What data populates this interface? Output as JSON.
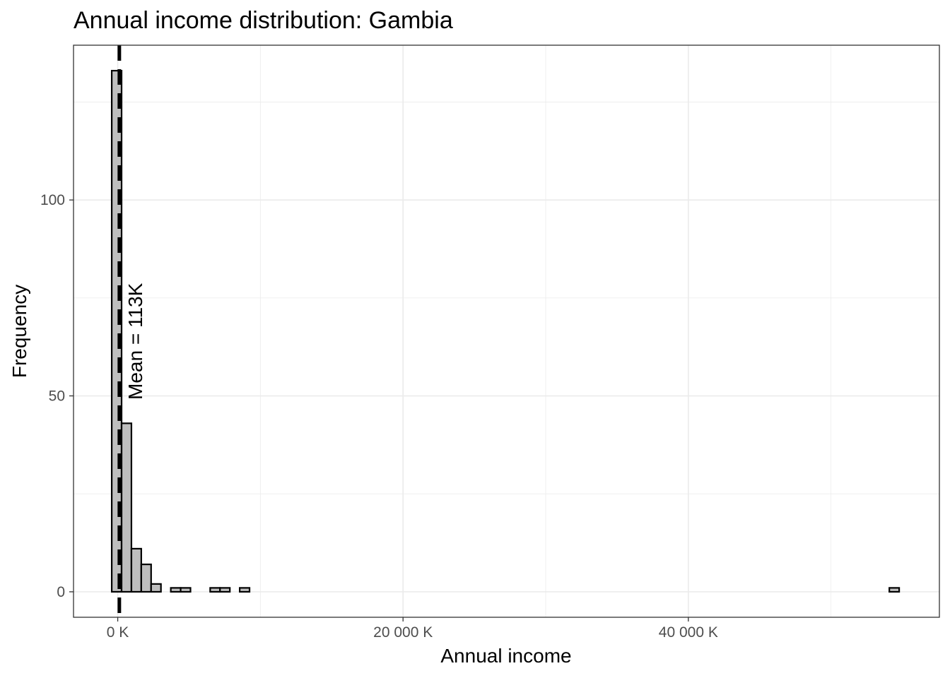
{
  "chart_data": {
    "type": "bar",
    "title": "Annual income distribution: Gambia",
    "xlabel": "Annual income",
    "ylabel": "Frequency",
    "xlim": [
      -3100,
      57600
    ],
    "ylim": [
      -6.5,
      139.5
    ],
    "x_ticks": [
      {
        "value": 0,
        "label": "0 K"
      },
      {
        "value": 20000,
        "label": "20 000 K"
      },
      {
        "value": 40000,
        "label": "40 000 K"
      }
    ],
    "x_minor_ticks": [
      10000,
      30000,
      50000
    ],
    "y_ticks": [
      {
        "value": 0,
        "label": "0"
      },
      {
        "value": 50,
        "label": "50"
      },
      {
        "value": 100,
        "label": "100"
      }
    ],
    "y_minor_ticks": [
      25,
      75,
      125
    ],
    "bin_width": 690,
    "bin_start": -420,
    "counts": [
      133,
      43,
      11,
      7,
      2,
      0,
      1,
      1,
      0,
      0,
      1,
      1,
      0,
      1,
      0,
      0,
      0,
      0,
      0,
      0,
      0,
      0,
      0,
      0,
      0,
      0,
      0,
      0,
      0,
      0,
      0,
      0,
      0,
      0,
      0,
      0,
      0,
      0,
      0,
      0,
      0,
      0,
      0,
      0,
      0,
      0,
      0,
      0,
      0,
      0,
      0,
      0,
      0,
      0,
      0,
      0,
      0,
      0,
      0,
      0,
      0,
      0,
      0,
      0,
      0,
      0,
      0,
      0,
      0,
      0,
      0,
      0,
      0,
      0,
      0,
      0,
      0,
      0,
      0,
      1
    ],
    "bar_fill": "#bebebe",
    "bar_outline": "#000000",
    "mean_value": 113,
    "mean_label": "Mean = 113K",
    "grid": true,
    "panel_border": "#333333",
    "grid_color": "#ebebeb"
  }
}
